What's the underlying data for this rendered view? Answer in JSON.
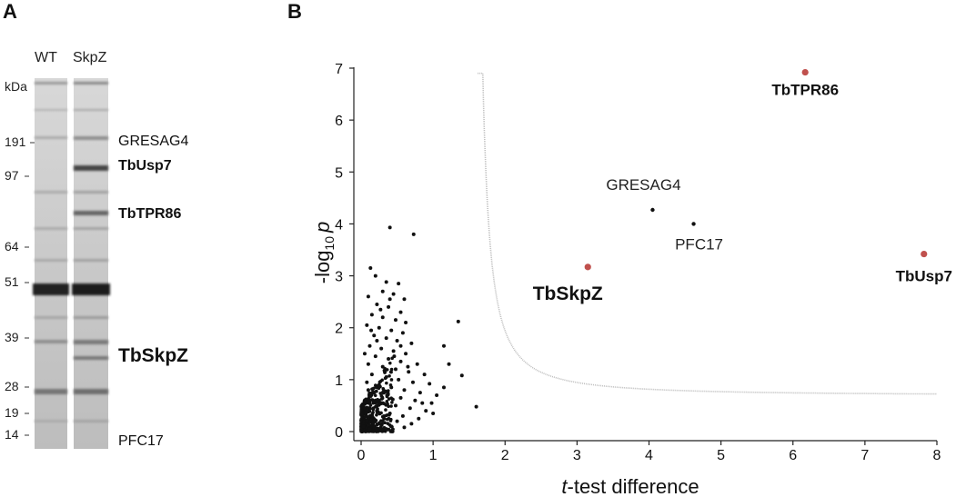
{
  "panel_a": {
    "letter": "A",
    "lanes": [
      "WT",
      "SkpZ"
    ],
    "unit": "kDa",
    "markers": [
      "191",
      "97",
      "64",
      "51",
      "39",
      "28",
      "19",
      "14"
    ],
    "band_labels": [
      "GRESAG4",
      "TbUsp7",
      "TbTPR86",
      "TbSkpZ",
      "PFC17"
    ]
  },
  "panel_b": {
    "letter": "B"
  },
  "chart_data": {
    "type": "scatter",
    "xlabel_italic": "t",
    "xlabel_rest": "-test difference",
    "ylabel_prefix": "-log",
    "ylabel_sub": "10",
    "ylabel_italic": "p",
    "xlim": [
      0,
      8
    ],
    "ylim": [
      0,
      7
    ],
    "xticks": [
      "0",
      "1",
      "2",
      "3",
      "4",
      "5",
      "6",
      "7",
      "8"
    ],
    "yticks": [
      "0",
      "1",
      "2",
      "3",
      "4",
      "5",
      "6",
      "7"
    ],
    "highlighted": [
      {
        "name": "TbTPR86",
        "x": 6.17,
        "y": 6.92,
        "color": "#c0504d"
      },
      {
        "name": "TbUsp7",
        "x": 7.82,
        "y": 3.42,
        "color": "#c0504d"
      },
      {
        "name": "TbSkpZ",
        "x": 3.15,
        "y": 3.17,
        "color": "#c0504d"
      }
    ],
    "labeled": [
      {
        "name": "GRESAG4",
        "x": 4.05,
        "y": 4.27
      },
      {
        "name": "PFC17",
        "x": 4.62,
        "y": 4.0
      }
    ],
    "background_points": [
      [
        0.4,
        3.93
      ],
      [
        0.73,
        3.8
      ],
      [
        0.13,
        3.15
      ],
      [
        0.2,
        3.0
      ],
      [
        0.35,
        2.88
      ],
      [
        0.52,
        2.85
      ],
      [
        0.3,
        2.7
      ],
      [
        0.1,
        2.6
      ],
      [
        0.45,
        2.65
      ],
      [
        0.6,
        2.55
      ],
      [
        0.22,
        2.45
      ],
      [
        0.38,
        2.4
      ],
      [
        0.55,
        2.3
      ],
      [
        0.15,
        2.25
      ],
      [
        0.3,
        2.2
      ],
      [
        0.48,
        2.15
      ],
      [
        0.62,
        2.1
      ],
      [
        1.35,
        2.12
      ],
      [
        0.08,
        2.05
      ],
      [
        0.25,
        2.0
      ],
      [
        0.42,
        1.95
      ],
      [
        0.58,
        1.9
      ],
      [
        0.18,
        1.85
      ],
      [
        0.35,
        1.8
      ],
      [
        0.5,
        1.75
      ],
      [
        0.7,
        1.7
      ],
      [
        1.15,
        1.65
      ],
      [
        0.12,
        1.65
      ],
      [
        0.28,
        1.6
      ],
      [
        0.45,
        1.55
      ],
      [
        0.62,
        1.5
      ],
      [
        0.05,
        1.5
      ],
      [
        0.2,
        1.45
      ],
      [
        0.38,
        1.4
      ],
      [
        0.55,
        1.35
      ],
      [
        0.78,
        1.3
      ],
      [
        1.22,
        1.3
      ],
      [
        0.1,
        1.3
      ],
      [
        0.3,
        1.25
      ],
      [
        0.48,
        1.2
      ],
      [
        0.66,
        1.15
      ],
      [
        0.88,
        1.1
      ],
      [
        1.4,
        1.08
      ],
      [
        0.15,
        1.1
      ],
      [
        0.35,
        1.05
      ],
      [
        0.52,
        1.0
      ],
      [
        0.72,
        0.95
      ],
      [
        0.95,
        0.92
      ],
      [
        1.15,
        0.85
      ],
      [
        0.08,
        0.95
      ],
      [
        0.25,
        0.9
      ],
      [
        0.42,
        0.85
      ],
      [
        0.6,
        0.8
      ],
      [
        0.82,
        0.75
      ],
      [
        1.05,
        0.7
      ],
      [
        0.18,
        0.75
      ],
      [
        0.36,
        0.7
      ],
      [
        0.55,
        0.65
      ],
      [
        0.75,
        0.6
      ],
      [
        0.98,
        0.55
      ],
      [
        1.6,
        0.48
      ],
      [
        0.12,
        0.6
      ],
      [
        0.3,
        0.55
      ],
      [
        0.48,
        0.5
      ],
      [
        0.68,
        0.45
      ],
      [
        0.9,
        0.4
      ],
      [
        0.05,
        0.45
      ],
      [
        0.22,
        0.4
      ],
      [
        0.4,
        0.35
      ],
      [
        0.58,
        0.3
      ],
      [
        0.8,
        0.25
      ],
      [
        0.15,
        0.3
      ],
      [
        0.32,
        0.25
      ],
      [
        0.5,
        0.2
      ],
      [
        0.7,
        0.15
      ],
      [
        0.08,
        0.2
      ],
      [
        0.25,
        0.15
      ],
      [
        0.42,
        0.1
      ],
      [
        0.6,
        0.08
      ],
      [
        0.03,
        0.1
      ],
      [
        0.18,
        0.08
      ],
      [
        0.35,
        0.05
      ],
      [
        0.12,
        0.04
      ],
      [
        0.28,
        0.03
      ],
      [
        0.07,
        0.3
      ],
      [
        0.2,
        0.6
      ],
      [
        0.33,
        1.15
      ],
      [
        0.46,
        1.45
      ],
      [
        0.14,
        1.95
      ],
      [
        0.27,
        2.35
      ],
      [
        0.4,
        2.55
      ],
      [
        0.55,
        1.65
      ],
      [
        0.65,
        1.25
      ],
      [
        0.85,
        0.55
      ],
      [
        1.0,
        0.35
      ],
      [
        0.22,
        1.75
      ],
      [
        0.44,
        0.62
      ],
      [
        0.1,
        0.8
      ]
    ]
  }
}
